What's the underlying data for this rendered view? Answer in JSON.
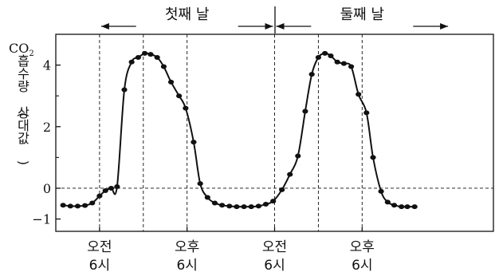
{
  "chart_data": {
    "type": "line",
    "title": "",
    "ylabel": {
      "co2": "CO",
      "sub": "2",
      "line2": "흡수량",
      "paren_open": "(",
      "line3": "상대값",
      "paren_close": ")"
    },
    "periods": [
      {
        "label": "첫째 날",
        "x_start": 0,
        "x_end": 24
      },
      {
        "label": "둘째 날",
        "x_start": 24,
        "x_end": 48
      }
    ],
    "xlim": [
      -6,
      54
    ],
    "ylim": [
      -1.4,
      5
    ],
    "yticks": [
      -1,
      0,
      2,
      4
    ],
    "xticks": [
      {
        "x": 0,
        "top": "오전",
        "bottom": "6시"
      },
      {
        "x": 12,
        "top": "오후",
        "bottom": "6시"
      },
      {
        "x": 24,
        "top": "오전",
        "bottom": "6시"
      },
      {
        "x": 36,
        "top": "오후",
        "bottom": "6시"
      }
    ],
    "dashed_vlines": [
      0,
      6,
      12,
      24,
      30,
      36
    ],
    "zero_dashed": true,
    "series": [
      {
        "values": [
          [
            -5.0,
            -0.55
          ],
          [
            -4.0,
            -0.58
          ],
          [
            -3.0,
            -0.58
          ],
          [
            -2.0,
            -0.56
          ],
          [
            -1.0,
            -0.48
          ],
          [
            0.0,
            -0.25
          ],
          [
            0.8,
            -0.08
          ],
          [
            1.6,
            0.0
          ],
          [
            2.4,
            0.05
          ],
          [
            3.4,
            3.2
          ],
          [
            4.4,
            4.1
          ],
          [
            5.3,
            4.25
          ],
          [
            6.2,
            4.38
          ],
          [
            7.0,
            4.35
          ],
          [
            7.9,
            4.25
          ],
          [
            8.8,
            3.95
          ],
          [
            9.8,
            3.45
          ],
          [
            10.9,
            3.0
          ],
          [
            11.8,
            2.6
          ],
          [
            12.9,
            1.5
          ],
          [
            13.8,
            0.15
          ],
          [
            14.8,
            -0.3
          ],
          [
            15.8,
            -0.48
          ],
          [
            16.8,
            -0.55
          ],
          [
            17.8,
            -0.58
          ],
          [
            18.8,
            -0.6
          ],
          [
            19.8,
            -0.6
          ],
          [
            20.8,
            -0.6
          ],
          [
            21.8,
            -0.58
          ],
          [
            22.8,
            -0.52
          ],
          [
            23.8,
            -0.42
          ],
          [
            25.0,
            -0.05
          ],
          [
            26.1,
            0.45
          ],
          [
            27.2,
            1.05
          ],
          [
            28.2,
            2.5
          ],
          [
            29.1,
            3.7
          ],
          [
            30.0,
            4.25
          ],
          [
            30.9,
            4.38
          ],
          [
            31.7,
            4.3
          ],
          [
            32.6,
            4.1
          ],
          [
            33.5,
            4.05
          ],
          [
            34.5,
            3.95
          ],
          [
            35.5,
            3.05
          ],
          [
            36.6,
            2.45
          ],
          [
            37.5,
            1.0
          ],
          [
            38.6,
            -0.1
          ],
          [
            39.5,
            -0.45
          ],
          [
            40.4,
            -0.55
          ],
          [
            41.4,
            -0.6
          ],
          [
            42.2,
            -0.6
          ],
          [
            43.2,
            -0.6
          ]
        ]
      }
    ]
  }
}
